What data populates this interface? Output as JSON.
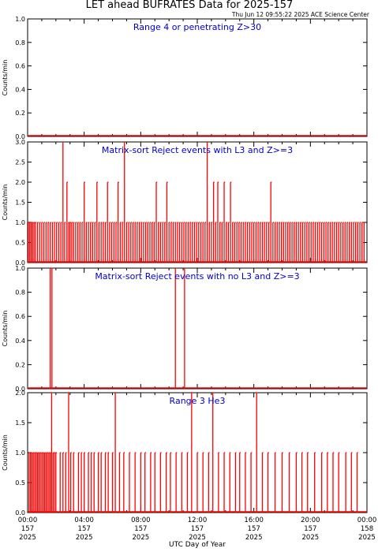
{
  "header": {
    "title": "LET ahead BUFRATES Data for 2025-157",
    "timestamp": "Thu Jun 12 09:55:22 2025 ACE Science Center"
  },
  "colors": {
    "data": "#ff0000",
    "annotation": "#0000cc",
    "axis": "#000000"
  },
  "x_axis": {
    "label": "UTC Day of Year",
    "ticks": [
      {
        "time": "00:00",
        "doy": "157",
        "year": "2025",
        "hour": 0
      },
      {
        "time": "04:00",
        "doy": "157",
        "year": "2025",
        "hour": 4
      },
      {
        "time": "08:00",
        "doy": "157",
        "year": "2025",
        "hour": 8
      },
      {
        "time": "12:00",
        "doy": "157",
        "year": "2025",
        "hour": 12
      },
      {
        "time": "16:00",
        "doy": "157",
        "year": "2025",
        "hour": 16
      },
      {
        "time": "20:00",
        "doy": "157",
        "year": "2025",
        "hour": 20
      },
      {
        "time": "00:00",
        "doy": "158",
        "year": "2025",
        "hour": 24
      }
    ]
  },
  "chart_data": [
    {
      "type": "line",
      "annotation": "Range 4 or  penetrating Z>30",
      "ylabel": "Counts/min",
      "ylim": [
        0,
        1.0
      ],
      "yticks": [
        "0.0",
        "0.2",
        "0.4",
        "0.6",
        "0.8",
        "1.0"
      ],
      "x": [
        0,
        24
      ],
      "y": [
        0,
        0
      ]
    },
    {
      "type": "line",
      "annotation": "Matrix-sort Reject events with L3 and Z>=3",
      "ylabel": "Counts/min",
      "ylim": [
        0,
        3.0
      ],
      "yticks": [
        "0.0",
        "0.5",
        "1.0",
        "1.5",
        "2.0",
        "2.5",
        "3.0"
      ],
      "x": [
        0.05,
        0.15,
        0.25,
        0.35,
        0.45,
        0.55,
        0.7,
        0.85,
        1.0,
        1.15,
        1.3,
        1.45,
        1.6,
        1.75,
        1.9,
        2.05,
        2.2,
        2.35,
        2.5,
        2.62,
        2.78,
        2.9,
        3.0,
        3.12,
        3.25,
        3.4,
        3.55,
        3.7,
        3.85,
        4.0,
        4.15,
        4.3,
        4.45,
        4.6,
        4.75,
        4.9,
        5.05,
        5.2,
        5.35,
        5.5,
        5.65,
        5.8,
        5.95,
        6.1,
        6.25,
        6.4,
        6.55,
        6.7,
        6.85,
        7.0,
        7.15,
        7.3,
        7.45,
        7.6,
        7.75,
        7.9,
        8.05,
        8.2,
        8.35,
        8.5,
        8.65,
        8.8,
        8.95,
        9.1,
        9.25,
        9.4,
        9.55,
        9.7,
        9.85,
        10.0,
        10.15,
        10.3,
        10.45,
        10.6,
        10.75,
        10.9,
        11.05,
        11.2,
        11.35,
        11.5,
        11.65,
        11.8,
        11.95,
        12.1,
        12.25,
        12.4,
        12.55,
        12.7,
        12.85,
        13.0,
        13.15,
        13.3,
        13.45,
        13.6,
        13.75,
        13.9,
        14.05,
        14.2,
        14.35,
        14.5,
        14.65,
        14.8,
        14.95,
        15.1,
        15.25,
        15.4,
        15.55,
        15.7,
        15.85,
        16.0,
        16.15,
        16.3,
        16.45,
        16.6,
        16.75,
        16.9,
        17.05,
        17.2,
        17.35,
        17.5,
        17.65,
        17.8,
        17.95,
        18.1,
        18.25,
        18.4,
        18.55,
        18.7,
        18.85,
        19.0,
        19.15,
        19.3,
        19.45,
        19.6,
        19.75,
        19.9,
        20.05,
        20.2,
        20.35,
        20.5,
        20.65,
        20.8,
        20.95,
        21.1,
        21.25,
        21.4,
        21.55,
        21.7,
        21.85,
        22.0,
        22.15,
        22.3,
        22.45,
        22.6,
        22.75,
        22.9,
        23.05,
        23.2,
        23.35,
        23.5,
        23.65,
        23.8
      ],
      "y": [
        1,
        1,
        1,
        1,
        1,
        1,
        1,
        1,
        1,
        1,
        1,
        1,
        1,
        1,
        1,
        1,
        1,
        1,
        3,
        1,
        2,
        1,
        1,
        1,
        1,
        1,
        1,
        1,
        1,
        2,
        1,
        1,
        1,
        1,
        1,
        2,
        1,
        1,
        1,
        1,
        2,
        1,
        1,
        1,
        1,
        2,
        1,
        1,
        3,
        1,
        1,
        1,
        1,
        1,
        1,
        1,
        1,
        1,
        1,
        1,
        1,
        1,
        1,
        2,
        1,
        1,
        1,
        1,
        2,
        1,
        1,
        1,
        1,
        1,
        1,
        1,
        1,
        1,
        1,
        1,
        1,
        1,
        1,
        1,
        1,
        1,
        1,
        3,
        1,
        1,
        2,
        1,
        2,
        1,
        1,
        2,
        1,
        1,
        2,
        1,
        1,
        1,
        1,
        1,
        1,
        1,
        1,
        1,
        1,
        1,
        1,
        1,
        1,
        1,
        1,
        1,
        1,
        2,
        1,
        1,
        1,
        1,
        1,
        1,
        1,
        1,
        1,
        1,
        1,
        1,
        1,
        1,
        1,
        1,
        1,
        1,
        1,
        1,
        1,
        1,
        1,
        1,
        1,
        1,
        1,
        1,
        1,
        1,
        1,
        1,
        1,
        1,
        1,
        1,
        1,
        1,
        1,
        1,
        1,
        1,
        1,
        1
      ]
    },
    {
      "type": "line",
      "annotation": "Matrix-sort Reject events with no L3 and Z>=3",
      "ylabel": "Counts/min",
      "ylim": [
        0,
        1.0
      ],
      "yticks": [
        "0.0",
        "0.2",
        "0.4",
        "0.6",
        "0.8",
        "1.0"
      ],
      "x": [
        1.6,
        1.72,
        10.45,
        11.1
      ],
      "y": [
        1,
        1,
        1,
        1
      ]
    },
    {
      "type": "line",
      "annotation": "Range 3 He3",
      "ylabel": "Counts/min",
      "ylim": [
        0,
        2.0
      ],
      "yticks": [
        "0.0",
        "0.5",
        "1.0",
        "1.5",
        "2.0"
      ],
      "x": [
        0.1,
        0.2,
        0.3,
        0.4,
        0.5,
        0.6,
        0.7,
        0.8,
        0.9,
        1.0,
        1.1,
        1.2,
        1.3,
        1.4,
        1.5,
        1.6,
        1.7,
        1.8,
        1.9,
        2.0,
        2.3,
        2.5,
        2.7,
        2.9,
        3.05,
        3.25,
        3.6,
        3.8,
        4.0,
        4.3,
        4.5,
        4.7,
        5.0,
        5.2,
        5.5,
        5.7,
        6.0,
        6.2,
        6.5,
        6.8,
        7.2,
        7.6,
        8.0,
        8.3,
        8.7,
        9.0,
        9.4,
        9.8,
        10.1,
        10.5,
        10.9,
        11.3,
        11.6,
        12.0,
        12.4,
        12.8,
        13.1,
        13.5,
        13.9,
        14.3,
        14.7,
        15.0,
        15.4,
        15.8,
        16.2,
        16.6,
        17.0,
        17.5,
        18.0,
        18.5,
        19.0,
        19.4,
        19.8,
        20.3,
        20.8,
        21.2,
        21.6,
        22.0,
        22.5,
        22.9,
        23.3
      ],
      "y": [
        1,
        1,
        1,
        1,
        1,
        1,
        1,
        1,
        1,
        1,
        1,
        1,
        1,
        1,
        1,
        1,
        2,
        1,
        1,
        1,
        1,
        1,
        1,
        2,
        1,
        1,
        1,
        1,
        1,
        1,
        1,
        1,
        1,
        1,
        1,
        1,
        1,
        2,
        1,
        1,
        1,
        1,
        1,
        1,
        1,
        1,
        1,
        1,
        1,
        1,
        1,
        1,
        2,
        1,
        1,
        1,
        2,
        1,
        1,
        1,
        1,
        1,
        1,
        1,
        2,
        1,
        1,
        1,
        1,
        1,
        1,
        1,
        1,
        1,
        1,
        1,
        1,
        1,
        1,
        1,
        1
      ]
    }
  ]
}
